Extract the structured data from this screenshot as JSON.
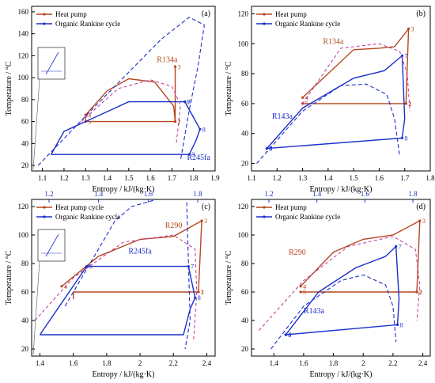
{
  "figure": {
    "panel_count": 4
  },
  "colors": {
    "hp": "#b5471f",
    "orc": "#1b2fc9",
    "dome": "#1b2fc9",
    "dash_pink": "#c0329a",
    "axis": "#000000",
    "label_red": "#b5471f",
    "label_blue": "#1b2fc9"
  },
  "chart_data": [
    {
      "panel": "(a)",
      "type": "line",
      "xlabel": "Entropy / kJ/(kg·K)",
      "ylabel": "Temperature / °C",
      "xlim": [
        1.05,
        1.9
      ],
      "ylim": [
        15,
        165
      ],
      "xticks": [
        1.1,
        1.2,
        1.3,
        1.4,
        1.5,
        1.6,
        1.7,
        1.8,
        1.9
      ],
      "yticks": [
        20,
        40,
        60,
        80,
        100,
        120,
        140,
        160
      ],
      "legend": {
        "placement": "top-left",
        "entries": [
          "Heat pump",
          "Organic Rankine cycle"
        ]
      },
      "fluid_labels": [
        {
          "text": "R134a",
          "color": "red",
          "x": 1.63,
          "y": 114
        },
        {
          "text": "R245fa",
          "color": "blue",
          "x": 1.77,
          "y": 25
        }
      ],
      "inset": {
        "present": true
      },
      "series": [
        {
          "name": "Heat pump",
          "kind": "hp",
          "x": [
            1.715,
            1.708,
            1.62,
            1.5,
            1.4,
            1.3,
            1.3,
            1.715,
            1.715
          ],
          "y": [
            60,
            74,
            96,
            99,
            88,
            66,
            60,
            60,
            110
          ],
          "points": [
            "2",
            "",
            "",
            "",
            "",
            "4",
            "5",
            "1",
            "3"
          ]
        },
        {
          "name": "Organic Rankine cycle",
          "kind": "orc",
          "x": [
            1.14,
            1.78,
            1.81,
            1.83,
            1.76,
            1.76,
            1.5,
            1.2,
            1.14
          ],
          "y": [
            30,
            30,
            42,
            53,
            78,
            78,
            78,
            51,
            30
          ],
          "points": [
            "",
            "9",
            "",
            "8",
            "7",
            "6",
            "",
            "",
            ""
          ]
        },
        {
          "kind": "dome",
          "x": [
            1.08,
            1.3,
            1.5,
            1.65,
            1.78,
            1.85,
            1.82,
            1.78,
            1.74
          ],
          "y": [
            20,
            65,
            105,
            135,
            155,
            148,
            110,
            70,
            25
          ]
        },
        {
          "kind": "dash_pink",
          "x": [
            1.28,
            1.45,
            1.6,
            1.7,
            1.74,
            1.72
          ],
          "y": [
            60,
            90,
            98,
            92,
            75,
            40
          ]
        }
      ]
    },
    {
      "panel": "(b)",
      "type": "line",
      "xlabel": "Entropy / kJ/(kg·K)",
      "ylabel": "Temperature / °C",
      "xlim": [
        1.1,
        1.8
      ],
      "ylim": [
        15,
        125
      ],
      "xticks": [
        1.1,
        1.2,
        1.3,
        1.4,
        1.5,
        1.6,
        1.7,
        1.8
      ],
      "yticks": [
        20,
        40,
        60,
        80,
        100,
        120
      ],
      "legend": {
        "placement": "top-left",
        "entries": [
          "Heat pump",
          "Organic Rankine cycle"
        ]
      },
      "fluid_labels": [
        {
          "text": "R134a",
          "color": "red",
          "x": 1.38,
          "y": 100
        },
        {
          "text": "R143a",
          "color": "blue",
          "x": 1.18,
          "y": 50
        }
      ],
      "series": [
        {
          "name": "Heat pump",
          "kind": "hp",
          "x": [
            1.3,
            1.5,
            1.6,
            1.66,
            1.715,
            1.705,
            1.705,
            1.3
          ],
          "y": [
            64,
            96,
            97,
            98,
            110,
            60,
            60,
            60
          ],
          "points": [
            "4",
            "",
            "",
            "",
            "3",
            "2",
            "1",
            "5"
          ]
        },
        {
          "name": "Organic Rankine cycle",
          "kind": "orc",
          "x": [
            1.16,
            1.3,
            1.5,
            1.62,
            1.69,
            1.7,
            1.69,
            1.16,
            1.16
          ],
          "y": [
            30,
            57,
            77,
            82,
            92,
            50,
            37,
            30,
            30
          ],
          "points": [
            "",
            "",
            "",
            "",
            "7",
            "",
            "8",
            "9",
            "6"
          ]
        },
        {
          "kind": "dome",
          "x": [
            1.12,
            1.3,
            1.45,
            1.55,
            1.63,
            1.66,
            1.68
          ],
          "y": [
            20,
            55,
            72,
            73,
            66,
            50,
            25
          ]
        },
        {
          "kind": "dash_pink",
          "x": [
            1.3,
            1.45,
            1.6,
            1.68,
            1.71,
            1.72
          ],
          "y": [
            60,
            97,
            100,
            95,
            80,
            55
          ]
        }
      ]
    },
    {
      "panel": "(c)",
      "type": "line",
      "xlabel": "Entropy / kJ/(kg·K)",
      "ylabel": "Temperature / °C",
      "xlim": [
        1.35,
        2.45
      ],
      "ylim": [
        15,
        125
      ],
      "xticks": [
        1.4,
        1.6,
        1.8,
        2.0,
        2.2,
        2.4
      ],
      "yticks": [
        20,
        40,
        60,
        80,
        100,
        120
      ],
      "top_xticks": [
        1.2,
        1.4,
        1.6,
        1.8
      ],
      "legend": {
        "placement": "top-left",
        "entries": [
          "Heat pump cycle",
          "Organic Rankine cycle"
        ]
      },
      "fluid_labels": [
        {
          "text": "R290",
          "color": "red",
          "x": 2.15,
          "y": 105
        },
        {
          "text": "R245fa",
          "color": "blue",
          "x": 1.93,
          "y": 87
        }
      ],
      "inset": {
        "present": true
      },
      "series": [
        {
          "name": "Heat pump cycle",
          "kind": "hp",
          "x": [
            1.53,
            1.75,
            2.0,
            2.2,
            2.37,
            2.35,
            2.35,
            1.6,
            1.6
          ],
          "y": [
            64,
            85,
            97,
            99,
            110,
            60,
            60,
            60,
            55
          ],
          "points": [
            "4",
            "",
            "",
            "",
            "3",
            "2",
            "1",
            "",
            ""
          ]
        },
        {
          "name": "Organic Rankine cycle",
          "kind": "orc",
          "x": [
            1.4,
            1.68,
            2.29,
            2.33,
            2.3,
            2.26,
            1.4
          ],
          "y": [
            30,
            78,
            78,
            56,
            48,
            30,
            30
          ],
          "points": [
            "",
            "6",
            "7",
            "8",
            "",
            "",
            ""
          ]
        },
        {
          "kind": "dome",
          "x": [
            1.55,
            1.7,
            1.85,
            1.95,
            2.1
          ],
          "y": [
            50,
            80,
            110,
            120,
            125
          ]
        },
        {
          "kind": "dome",
          "x": [
            2.28,
            2.29,
            2.3,
            2.27
          ],
          "y": [
            123,
            80,
            40,
            20
          ]
        },
        {
          "kind": "dash_pink",
          "x": [
            1.37,
            1.6,
            1.9,
            2.2,
            2.33,
            2.34,
            2.32
          ],
          "y": [
            40,
            70,
            95,
            100,
            90,
            60,
            25
          ]
        }
      ]
    },
    {
      "panel": "(d)",
      "type": "line",
      "xlabel": "Entropy / kJ/(kg·K)",
      "ylabel": "Temperature / °C",
      "xlim": [
        1.25,
        2.45
      ],
      "ylim": [
        15,
        125
      ],
      "xticks": [
        1.4,
        1.6,
        1.8,
        2.0,
        2.2,
        2.4
      ],
      "yticks": [
        20,
        40,
        60,
        80,
        100,
        120
      ],
      "top_xticks": [
        1.2,
        1.4,
        1.6,
        1.8
      ],
      "legend": {
        "placement": "top-left",
        "entries": [
          "Heat pump",
          "Organic Rankine cycle"
        ]
      },
      "fluid_labels": [
        {
          "text": "R290",
          "color": "red",
          "x": 1.5,
          "y": 86
        },
        {
          "text": "R143a",
          "color": "blue",
          "x": 1.6,
          "y": 45
        }
      ],
      "series": [
        {
          "name": "Heat pump",
          "kind": "hp",
          "x": [
            1.58,
            1.8,
            2.0,
            2.2,
            2.38,
            2.36,
            2.36,
            1.58
          ],
          "y": [
            64,
            88,
            97,
            100,
            110,
            60,
            60,
            60
          ],
          "points": [
            "4",
            "",
            "",
            "",
            "3",
            "2",
            "1",
            "5"
          ]
        },
        {
          "name": "Organic Rankine cycle",
          "kind": "orc",
          "x": [
            1.48,
            1.7,
            1.95,
            2.15,
            2.22,
            2.24,
            2.23,
            1.48
          ],
          "y": [
            30,
            60,
            77,
            85,
            92,
            55,
            37,
            30
          ],
          "points": [
            "6",
            "",
            "",
            "",
            "7",
            "",
            "8",
            "9"
          ]
        },
        {
          "kind": "dome",
          "x": [
            1.38,
            1.6,
            1.85,
            2.0,
            2.15,
            2.2,
            2.22
          ],
          "y": [
            20,
            50,
            68,
            72,
            65,
            50,
            25
          ]
        },
        {
          "kind": "dash_pink",
          "x": [
            1.3,
            1.6,
            1.9,
            2.2,
            2.35,
            2.38,
            2.36
          ],
          "y": [
            33,
            68,
            92,
            99,
            90,
            65,
            40
          ]
        }
      ]
    }
  ],
  "layout_hint": {}
}
